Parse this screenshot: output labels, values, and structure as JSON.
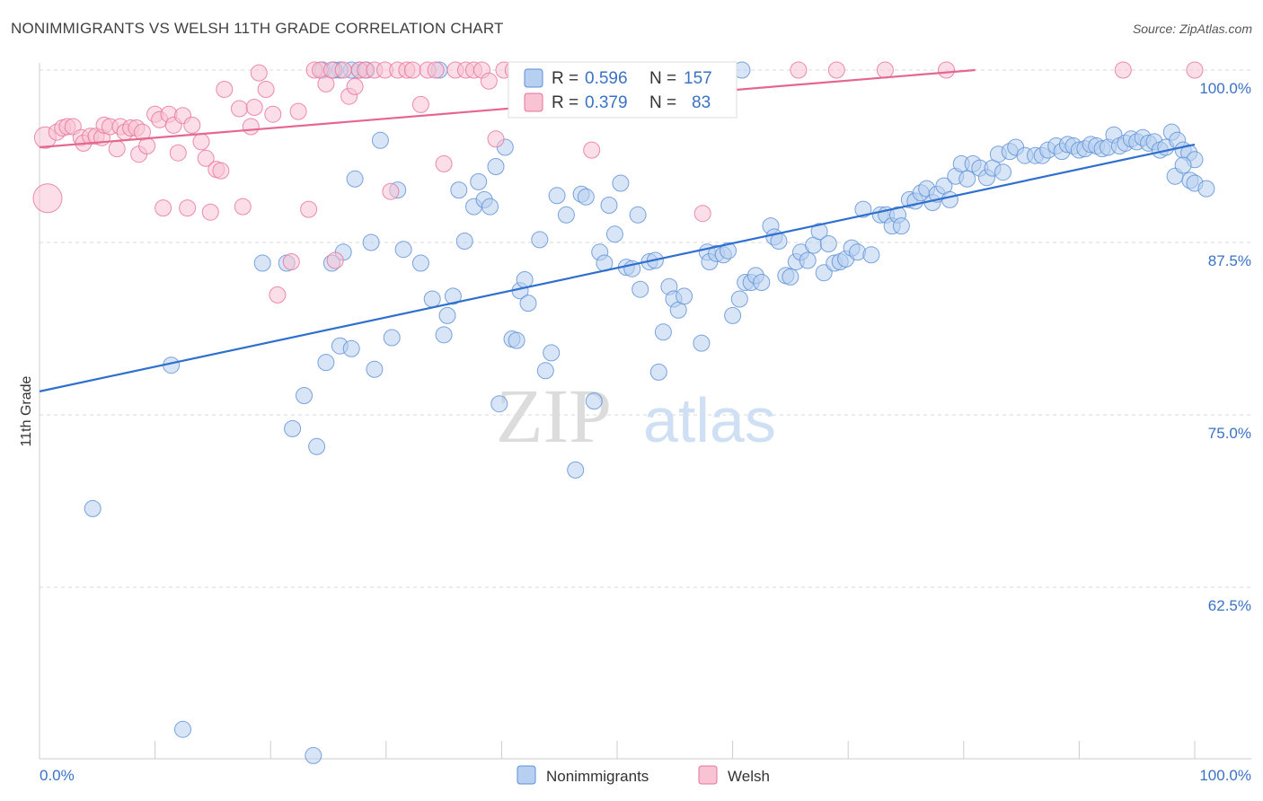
{
  "title": "NONIMMIGRANTS VS WELSH 11TH GRADE CORRELATION CHART",
  "source": "Source: ZipAtlas.com",
  "watermark": {
    "left": "ZIP",
    "right": "atlas"
  },
  "chart_data": {
    "type": "scatter",
    "ylabel": "11th Grade",
    "xlim": [
      0,
      100
    ],
    "ylim": [
      50,
      102
    ],
    "x_tick_labels": [
      "0.0%",
      "100.0%"
    ],
    "y_ticks": [
      {
        "value": 100,
        "label": "100.0%"
      },
      {
        "value": 87.5,
        "label": "87.5%"
      },
      {
        "value": 75,
        "label": "75.0%"
      },
      {
        "value": 62.5,
        "label": "62.5%"
      }
    ],
    "grid": true,
    "legend_position": "top-center",
    "series": [
      {
        "name": "Nonimmigrants",
        "color": "#5b8fd6",
        "fill": "#b7cff1",
        "R": "0.596",
        "N": "157",
        "trend": [
          [
            0,
            76.7
          ],
          [
            100,
            94.6
          ]
        ],
        "points": [
          [
            4.6,
            68.2
          ],
          [
            11.4,
            78.6
          ],
          [
            12.4,
            52.2
          ],
          [
            19.3,
            86.0
          ],
          [
            21.4,
            86.0
          ],
          [
            21.9,
            74.0
          ],
          [
            22.9,
            76.4
          ],
          [
            23.7,
            50.3
          ],
          [
            24.0,
            72.7
          ],
          [
            24.8,
            78.8
          ],
          [
            25.3,
            86.0
          ],
          [
            26.0,
            80.0
          ],
          [
            26.3,
            86.8
          ],
          [
            27.0,
            79.8
          ],
          [
            27.3,
            92.1
          ],
          [
            27.7,
            100.0
          ],
          [
            28.3,
            100.0
          ],
          [
            28.7,
            87.5
          ],
          [
            29.0,
            78.3
          ],
          [
            29.5,
            94.9
          ],
          [
            30.5,
            80.6
          ],
          [
            31.0,
            91.3
          ],
          [
            31.5,
            87.0
          ],
          [
            33.0,
            86.0
          ],
          [
            34.0,
            83.4
          ],
          [
            34.6,
            100.0
          ],
          [
            35.0,
            80.8
          ],
          [
            35.3,
            82.2
          ],
          [
            35.8,
            83.6
          ],
          [
            36.3,
            91.3
          ],
          [
            36.8,
            87.6
          ],
          [
            37.6,
            90.1
          ],
          [
            38.0,
            91.9
          ],
          [
            38.5,
            90.6
          ],
          [
            39.0,
            90.1
          ],
          [
            39.5,
            93.0
          ],
          [
            39.8,
            75.8
          ],
          [
            40.3,
            94.4
          ],
          [
            40.9,
            80.5
          ],
          [
            41.3,
            80.4
          ],
          [
            41.6,
            84.0
          ],
          [
            42.0,
            84.8
          ],
          [
            42.3,
            83.1
          ],
          [
            43.3,
            87.7
          ],
          [
            43.8,
            78.2
          ],
          [
            44.3,
            79.5
          ],
          [
            44.8,
            90.9
          ],
          [
            45.6,
            89.5
          ],
          [
            46.4,
            71.0
          ],
          [
            46.9,
            91.0
          ],
          [
            47.3,
            90.8
          ],
          [
            48.0,
            76.0
          ],
          [
            48.5,
            86.8
          ],
          [
            48.9,
            86.0
          ],
          [
            49.3,
            90.2
          ],
          [
            49.8,
            88.1
          ],
          [
            50.3,
            91.8
          ],
          [
            50.8,
            85.7
          ],
          [
            51.3,
            85.6
          ],
          [
            51.8,
            89.5
          ],
          [
            52.0,
            84.1
          ],
          [
            52.8,
            86.1
          ],
          [
            53.3,
            86.2
          ],
          [
            53.6,
            78.1
          ],
          [
            54.0,
            81.0
          ],
          [
            54.5,
            84.3
          ],
          [
            54.9,
            83.4
          ],
          [
            55.3,
            82.6
          ],
          [
            55.8,
            83.6
          ],
          [
            57.3,
            80.2
          ],
          [
            57.8,
            86.8
          ],
          [
            58.0,
            86.1
          ],
          [
            58.6,
            86.7
          ],
          [
            59.2,
            86.6
          ],
          [
            59.6,
            86.9
          ],
          [
            60.0,
            82.2
          ],
          [
            60.6,
            83.4
          ],
          [
            61.1,
            84.6
          ],
          [
            61.6,
            84.6
          ],
          [
            62.0,
            85.1
          ],
          [
            62.5,
            84.6
          ],
          [
            63.3,
            88.7
          ],
          [
            63.6,
            87.9
          ],
          [
            64.0,
            87.6
          ],
          [
            64.6,
            85.1
          ],
          [
            65.0,
            85.0
          ],
          [
            65.5,
            86.1
          ],
          [
            65.9,
            86.8
          ],
          [
            66.5,
            86.2
          ],
          [
            67.0,
            87.3
          ],
          [
            67.5,
            88.3
          ],
          [
            67.9,
            85.3
          ],
          [
            68.3,
            87.4
          ],
          [
            68.8,
            86.0
          ],
          [
            69.3,
            86.1
          ],
          [
            69.8,
            86.3
          ],
          [
            70.3,
            87.1
          ],
          [
            70.8,
            86.8
          ],
          [
            71.3,
            89.9
          ],
          [
            72.0,
            86.6
          ],
          [
            72.8,
            89.5
          ],
          [
            73.3,
            89.5
          ],
          [
            73.8,
            88.7
          ],
          [
            74.3,
            89.5
          ],
          [
            74.6,
            88.7
          ],
          [
            75.3,
            90.6
          ],
          [
            75.8,
            90.5
          ],
          [
            76.3,
            91.1
          ],
          [
            76.8,
            91.4
          ],
          [
            77.3,
            90.4
          ],
          [
            77.7,
            91.0
          ],
          [
            78.3,
            91.6
          ],
          [
            78.8,
            90.6
          ],
          [
            79.3,
            92.3
          ],
          [
            79.8,
            93.2
          ],
          [
            80.3,
            92.1
          ],
          [
            80.8,
            93.2
          ],
          [
            81.4,
            92.9
          ],
          [
            82.0,
            92.2
          ],
          [
            82.5,
            92.9
          ],
          [
            83.0,
            93.9
          ],
          [
            83.4,
            92.6
          ],
          [
            84.0,
            94.1
          ],
          [
            84.5,
            94.4
          ],
          [
            85.3,
            93.8
          ],
          [
            86.2,
            93.8
          ],
          [
            86.8,
            93.8
          ],
          [
            87.3,
            94.2
          ],
          [
            88.0,
            94.5
          ],
          [
            88.5,
            94.1
          ],
          [
            89.0,
            94.6
          ],
          [
            89.5,
            94.5
          ],
          [
            90.0,
            94.2
          ],
          [
            90.5,
            94.3
          ],
          [
            91.0,
            94.6
          ],
          [
            91.5,
            94.5
          ],
          [
            92.0,
            94.3
          ],
          [
            92.5,
            94.4
          ],
          [
            93.0,
            95.3
          ],
          [
            93.5,
            94.5
          ],
          [
            94.0,
            94.7
          ],
          [
            94.5,
            95.0
          ],
          [
            95.0,
            94.8
          ],
          [
            95.5,
            95.1
          ],
          [
            96.0,
            94.7
          ],
          [
            96.5,
            94.8
          ],
          [
            97.0,
            94.2
          ],
          [
            97.5,
            94.4
          ],
          [
            98.0,
            95.5
          ],
          [
            98.5,
            94.9
          ],
          [
            99.0,
            94.2
          ],
          [
            99.5,
            94.0
          ],
          [
            100.0,
            93.5
          ],
          [
            98.3,
            92.3
          ],
          [
            99.0,
            93.1
          ],
          [
            99.6,
            92.0
          ],
          [
            100.0,
            91.8
          ],
          [
            101.0,
            91.4
          ],
          [
            60.8,
            100.0
          ],
          [
            24.5,
            100.0
          ],
          [
            27.0,
            100.0
          ],
          [
            26.0,
            100.0
          ],
          [
            25.5,
            100.0
          ]
        ]
      },
      {
        "name": "Welsh",
        "color": "#e8709a",
        "fill": "#f8c3d3",
        "R": "0.379",
        "N": "83",
        "trend": [
          [
            0,
            94.4
          ],
          [
            81,
            100.0
          ]
        ],
        "points": [
          [
            0.5,
            95.1
          ],
          [
            0.7,
            90.7
          ],
          [
            1.5,
            95.5
          ],
          [
            2.0,
            95.8
          ],
          [
            2.4,
            95.9
          ],
          [
            2.9,
            95.9
          ],
          [
            3.6,
            95.1
          ],
          [
            3.8,
            94.7
          ],
          [
            4.4,
            95.2
          ],
          [
            4.9,
            95.2
          ],
          [
            5.4,
            95.1
          ],
          [
            5.6,
            96.0
          ],
          [
            6.1,
            95.9
          ],
          [
            6.7,
            94.3
          ],
          [
            7.0,
            95.9
          ],
          [
            7.4,
            95.5
          ],
          [
            7.9,
            95.8
          ],
          [
            8.4,
            95.8
          ],
          [
            8.6,
            93.9
          ],
          [
            8.9,
            95.5
          ],
          [
            9.3,
            94.5
          ],
          [
            10.0,
            96.8
          ],
          [
            10.4,
            96.4
          ],
          [
            10.7,
            90.0
          ],
          [
            11.2,
            96.8
          ],
          [
            11.6,
            96.0
          ],
          [
            12.0,
            94.0
          ],
          [
            12.4,
            96.7
          ],
          [
            12.8,
            90.0
          ],
          [
            13.2,
            96.0
          ],
          [
            14.0,
            94.8
          ],
          [
            14.4,
            93.6
          ],
          [
            14.8,
            89.7
          ],
          [
            15.3,
            92.8
          ],
          [
            15.7,
            92.7
          ],
          [
            16.0,
            98.6
          ],
          [
            17.3,
            97.2
          ],
          [
            17.6,
            90.1
          ],
          [
            18.3,
            95.9
          ],
          [
            18.6,
            97.3
          ],
          [
            19.0,
            99.8
          ],
          [
            19.6,
            98.6
          ],
          [
            20.2,
            96.8
          ],
          [
            20.6,
            83.7
          ],
          [
            21.8,
            86.1
          ],
          [
            22.4,
            97.0
          ],
          [
            23.3,
            89.9
          ],
          [
            23.8,
            100.0
          ],
          [
            24.3,
            100.0
          ],
          [
            24.8,
            99.0
          ],
          [
            25.3,
            100.0
          ],
          [
            25.6,
            86.2
          ],
          [
            26.3,
            100.0
          ],
          [
            26.8,
            98.1
          ],
          [
            27.3,
            98.8
          ],
          [
            27.7,
            100.0
          ],
          [
            28.2,
            100.0
          ],
          [
            29.0,
            100.0
          ],
          [
            29.9,
            100.0
          ],
          [
            30.4,
            91.2
          ],
          [
            31.0,
            100.0
          ],
          [
            31.8,
            100.0
          ],
          [
            32.3,
            100.0
          ],
          [
            33.0,
            97.5
          ],
          [
            33.6,
            100.0
          ],
          [
            34.3,
            100.0
          ],
          [
            35.0,
            93.2
          ],
          [
            36.0,
            100.0
          ],
          [
            36.9,
            100.0
          ],
          [
            37.6,
            100.0
          ],
          [
            38.3,
            100.0
          ],
          [
            38.9,
            99.2
          ],
          [
            39.5,
            95.0
          ],
          [
            40.2,
            100.0
          ],
          [
            41.0,
            100.0
          ],
          [
            41.8,
            100.0
          ],
          [
            47.8,
            94.2
          ],
          [
            57.4,
            89.6
          ],
          [
            59.5,
            100.0
          ],
          [
            65.7,
            100.0
          ],
          [
            69.0,
            100.0
          ],
          [
            73.2,
            100.0
          ],
          [
            78.5,
            100.0
          ],
          [
            93.8,
            100.0
          ],
          [
            100.0,
            100.0
          ]
        ]
      }
    ]
  },
  "legend": {
    "r_label": "R =",
    "n_label": "N ="
  }
}
